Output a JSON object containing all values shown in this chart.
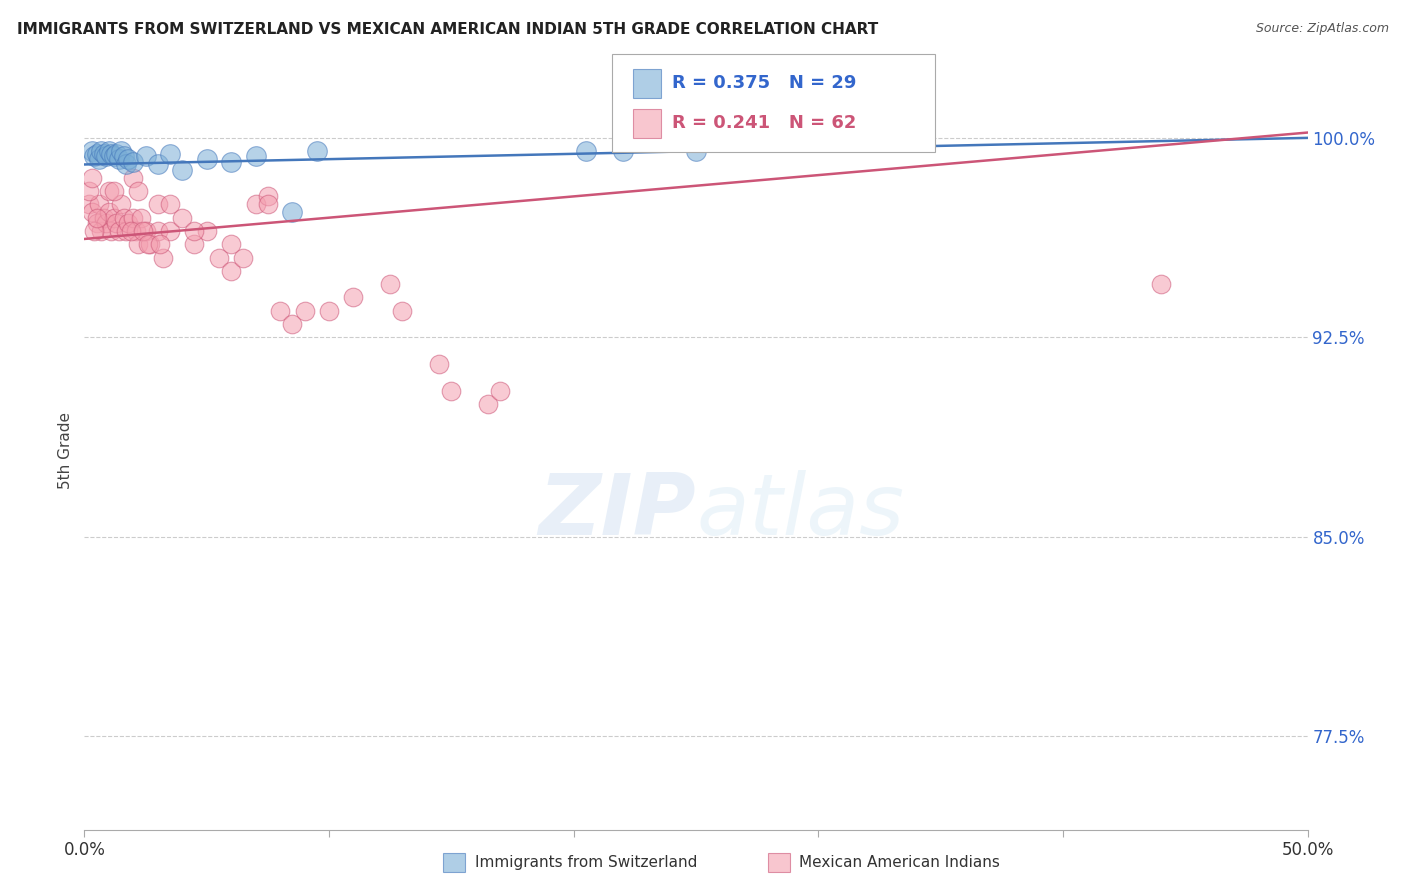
{
  "title": "IMMIGRANTS FROM SWITZERLAND VS MEXICAN AMERICAN INDIAN 5TH GRADE CORRELATION CHART",
  "source": "Source: ZipAtlas.com",
  "ylabel": "5th Grade",
  "yticks": [
    77.5,
    85.0,
    92.5,
    100.0
  ],
  "xmin": 0.0,
  "xmax": 50.0,
  "ymin": 74.0,
  "ymax": 102.5,
  "legend_blue_R": "R = 0.375",
  "legend_blue_N": "N = 29",
  "legend_pink_R": "R = 0.241",
  "legend_pink_N": "N = 62",
  "legend_label_blue": "Immigrants from Switzerland",
  "legend_label_pink": "Mexican American Indians",
  "blue_color": "#7aaed6",
  "pink_color": "#f4a0b0",
  "blue_line_color": "#4477bb",
  "pink_line_color": "#cc5577",
  "blue_scatter_x": [
    0.3,
    0.4,
    0.5,
    0.6,
    0.7,
    0.8,
    0.9,
    1.0,
    1.1,
    1.2,
    1.3,
    1.4,
    1.5,
    1.6,
    1.7,
    1.8,
    2.0,
    2.5,
    3.0,
    3.5,
    4.0,
    5.0,
    6.0,
    7.0,
    8.5,
    9.5,
    20.5,
    22.0,
    25.0
  ],
  "blue_scatter_y": [
    99.5,
    99.3,
    99.4,
    99.2,
    99.5,
    99.4,
    99.3,
    99.5,
    99.4,
    99.3,
    99.4,
    99.2,
    99.5,
    99.3,
    99.0,
    99.2,
    99.1,
    99.3,
    99.0,
    99.4,
    98.8,
    99.2,
    99.1,
    99.3,
    97.2,
    99.5,
    99.5,
    99.5,
    99.5
  ],
  "pink_scatter_x": [
    0.2,
    0.3,
    0.5,
    0.6,
    0.7,
    0.8,
    0.9,
    1.0,
    1.1,
    1.2,
    1.3,
    1.4,
    1.5,
    1.6,
    1.7,
    1.8,
    2.0,
    2.1,
    2.2,
    2.3,
    2.5,
    2.7,
    3.0,
    3.2,
    3.5,
    4.0,
    4.5,
    5.0,
    5.5,
    6.0,
    6.5,
    7.0,
    7.5,
    8.0,
    8.5,
    9.0,
    10.0,
    11.0,
    12.5,
    13.0,
    14.5,
    15.0,
    16.5,
    17.0,
    0.4,
    0.5,
    1.9,
    2.4,
    2.6,
    3.1,
    0.2,
    0.3,
    1.0,
    1.2,
    2.0,
    2.2,
    3.0,
    3.5,
    4.5,
    6.0,
    7.5,
    44.0
  ],
  "pink_scatter_y": [
    97.5,
    97.2,
    96.8,
    97.5,
    96.5,
    97.0,
    96.8,
    97.2,
    96.5,
    97.0,
    96.8,
    96.5,
    97.5,
    97.0,
    96.5,
    96.8,
    97.0,
    96.5,
    96.0,
    97.0,
    96.5,
    96.0,
    96.5,
    95.5,
    96.5,
    97.0,
    96.0,
    96.5,
    95.5,
    95.0,
    95.5,
    97.5,
    97.8,
    93.5,
    93.0,
    93.5,
    93.5,
    94.0,
    94.5,
    93.5,
    91.5,
    90.5,
    90.0,
    90.5,
    96.5,
    97.0,
    96.5,
    96.5,
    96.0,
    96.0,
    98.0,
    98.5,
    98.0,
    98.0,
    98.5,
    98.0,
    97.5,
    97.5,
    96.5,
    96.0,
    97.5,
    94.5
  ],
  "blue_line_x0": 0.0,
  "blue_line_y0": 99.0,
  "blue_line_x1": 50.0,
  "blue_line_y1": 100.0,
  "pink_line_x0": 0.0,
  "pink_line_y0": 96.2,
  "pink_line_x1": 50.0,
  "pink_line_y1": 100.2
}
